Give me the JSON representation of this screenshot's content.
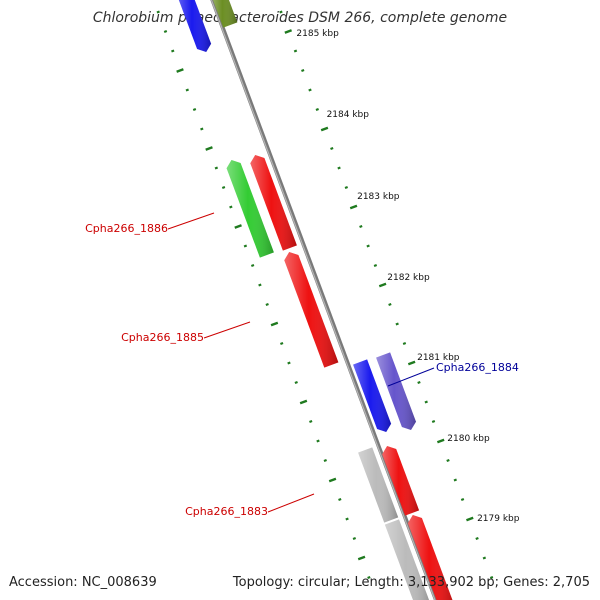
{
  "title": "Chlorobium phaeobacteroides DSM 266, complete genome",
  "footer": {
    "accession": "Accession: NC_008639",
    "summary": "Topology: circular; Length: 3,133,902 bp; Genes: 2,705"
  },
  "colors": {
    "backbone": "#7a7a7a",
    "tick": "#1f7a1f",
    "label_red": "#cc0000",
    "label_blue": "#000099"
  },
  "kbp_labels": [
    "2185 kbp",
    "2184 kbp",
    "2183 kbp",
    "2182 kbp",
    "2181 kbp",
    "2180 kbp",
    "2179 kbp"
  ],
  "genes": [
    {
      "label": "",
      "color": "#1a1aee"
    },
    {
      "label": "",
      "color": "#6b8e23"
    },
    {
      "label": "",
      "color": "#33cc33"
    },
    {
      "label": "Cpha266_1886",
      "color": "#ee1111"
    },
    {
      "label": "Cpha266_1885",
      "color": "#ee1111"
    },
    {
      "label": "",
      "color": "#1a1aee"
    },
    {
      "label": "Cpha266_1884",
      "color": "#6655cc"
    },
    {
      "label": "",
      "color": "#bbbbbb"
    },
    {
      "label": "Cpha266_1883",
      "color": "#ee1111"
    },
    {
      "label": "",
      "color": "#bbbbbb"
    },
    {
      "label": "",
      "color": "#ee1111"
    }
  ]
}
